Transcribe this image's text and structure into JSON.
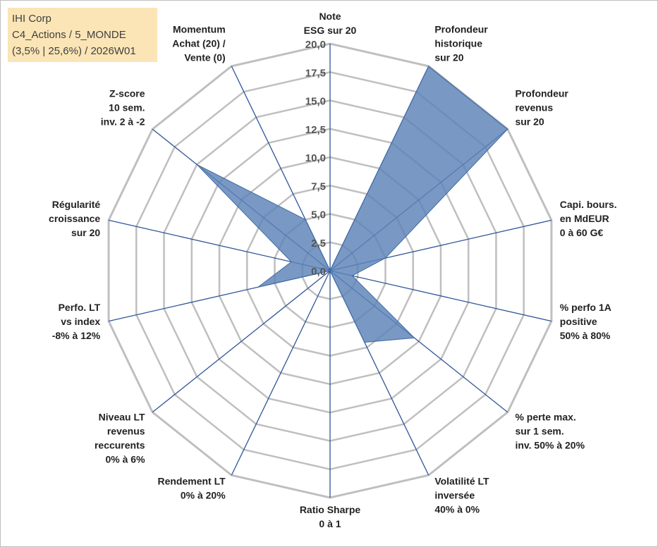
{
  "info_box": {
    "line1": "IHI Corp",
    "line2": "C4_Actions / 5_MONDE",
    "line3": "(3,5% | 25,6%) / 2026W01"
  },
  "colors": {
    "grid": "#bfbfbf",
    "axis": "#2f5597",
    "fill": "#5b83b7",
    "stroke": "#3f6aa3",
    "info_bg": "#fbe5b6"
  },
  "chart_data": {
    "type": "radar",
    "title": "",
    "rmin": 0,
    "rmax": 20,
    "ticks": [
      "0,0",
      "2,5",
      "5,0",
      "7,5",
      "10,0",
      "12,5",
      "15,0",
      "17,5",
      "20,0"
    ],
    "tick_values": [
      0,
      2.5,
      5,
      7.5,
      10,
      12.5,
      15,
      17.5,
      20
    ],
    "categories": [
      [
        "Note",
        "ESG sur 20"
      ],
      [
        "Profondeur",
        "historique",
        "sur 20"
      ],
      [
        "Profondeur",
        "revenus",
        "sur 20"
      ],
      [
        "Capi. bours.",
        "en MdEUR",
        "0 à 60 G€"
      ],
      [
        "% perfo 1A",
        "positive",
        "50% à 80%"
      ],
      [
        "% perte max.",
        "sur 1 sem.",
        "inv. 50% à 20%"
      ],
      [
        "Volatilité LT",
        "inversée",
        "40% à 0%"
      ],
      [
        "Ratio Sharpe",
        "0 à 1"
      ],
      [
        "Rendement LT",
        "0% à 20%"
      ],
      [
        "Niveau LT",
        "revenus",
        "reccurents",
        "0% à 6%"
      ],
      [
        "Perfo. LT",
        "vs index",
        "-8% à 12%"
      ],
      [
        "Régularité",
        "croissance",
        "sur 20"
      ],
      [
        "Z-score",
        "10 sem.",
        "inv. 2 à -2"
      ],
      [
        "Momentum",
        "Achat (20) /",
        "Vente (0)"
      ]
    ],
    "series": [
      {
        "name": "IHI Corp",
        "values": [
          0,
          20,
          20,
          5,
          2,
          9.5,
          7,
          0,
          3,
          0,
          6.5,
          3.5,
          15,
          5
        ]
      }
    ]
  }
}
